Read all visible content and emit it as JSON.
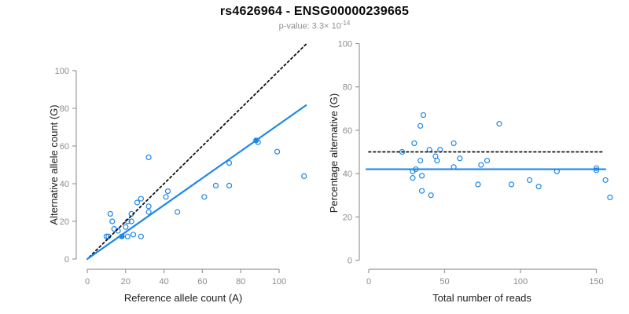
{
  "header": {
    "title": "rs4626964 - ENSG00000239665",
    "subtitle_text": "p-value: 3.3× 10",
    "subtitle_sup": "-14"
  },
  "colors": {
    "accent_blue": "#1E87E8",
    "axis_gray": "#999999",
    "tick_gray": "#8c8c8c",
    "label_black": "#1c1c1c",
    "dotted_black": "#111111",
    "subtitle_gray": "#8f8f8f"
  },
  "chart_data": [
    {
      "type": "scatter",
      "panel": "left",
      "xlabel": "Reference allele count (A)",
      "ylabel": "Alternative allele count (G)",
      "xticks": [
        0,
        20,
        40,
        60,
        80,
        100
      ],
      "yticks": [
        0,
        20,
        40,
        60,
        80,
        100
      ],
      "xlim": [
        0,
        114
      ],
      "ylim": [
        0,
        114
      ],
      "grid": false,
      "legend": "none",
      "points": [
        [
          10,
          12
        ],
        [
          11,
          12
        ],
        [
          12,
          24
        ],
        [
          13,
          20
        ],
        [
          14,
          16
        ],
        [
          16,
          15
        ],
        [
          20,
          17
        ],
        [
          21,
          12
        ],
        [
          21,
          20
        ],
        [
          23,
          20
        ],
        [
          23,
          24
        ],
        [
          24,
          13
        ],
        [
          26,
          30
        ],
        [
          28,
          12
        ],
        [
          28,
          32
        ],
        [
          32,
          25
        ],
        [
          32,
          28
        ],
        [
          32,
          54
        ],
        [
          41,
          33
        ],
        [
          42,
          36
        ],
        [
          47,
          25
        ],
        [
          61,
          33
        ],
        [
          67,
          39
        ],
        [
          74,
          39
        ],
        [
          74,
          51
        ],
        [
          89,
          62
        ],
        [
          99,
          57
        ],
        [
          113,
          44
        ]
      ],
      "filled_points": [
        [
          18,
          12
        ],
        [
          88,
          63
        ]
      ],
      "lines": [
        {
          "name": "identity-line",
          "style": "dotted",
          "color": "black",
          "from": [
            1,
            1
          ],
          "to": [
            114,
            114
          ]
        },
        {
          "name": "regression-line",
          "style": "solid",
          "color": "accent",
          "from": [
            0,
            0
          ],
          "to": [
            114,
            81.6
          ]
        }
      ]
    },
    {
      "type": "scatter",
      "panel": "right",
      "xlabel": "Total number of reads",
      "ylabel": "Percentage alternative (G)",
      "xticks": [
        0,
        50,
        100,
        150
      ],
      "yticks": [
        0,
        20,
        40,
        60,
        80,
        100
      ],
      "xlim": [
        0,
        159
      ],
      "ylim": [
        0,
        100
      ],
      "grid": false,
      "legend": "none",
      "points": [
        [
          22,
          50
        ],
        [
          29,
          38
        ],
        [
          29,
          41
        ],
        [
          30,
          54
        ],
        [
          31,
          42
        ],
        [
          34,
          46
        ],
        [
          34,
          62
        ],
        [
          35,
          32
        ],
        [
          35,
          39
        ],
        [
          36,
          67
        ],
        [
          40,
          51
        ],
        [
          41,
          30
        ],
        [
          44,
          48
        ],
        [
          45,
          46
        ],
        [
          47,
          51
        ],
        [
          56,
          43
        ],
        [
          56,
          54
        ],
        [
          60,
          47
        ],
        [
          72,
          35
        ],
        [
          74,
          44
        ],
        [
          78,
          46
        ],
        [
          86,
          63
        ],
        [
          94,
          35
        ],
        [
          106,
          37
        ],
        [
          112,
          34
        ],
        [
          124,
          41
        ],
        [
          150,
          42.5
        ],
        [
          150,
          41.5
        ],
        [
          156,
          37
        ],
        [
          159,
          29
        ]
      ],
      "filled_points": [],
      "lines": [
        {
          "name": "expected-50pct-line",
          "style": "dotted",
          "color": "black",
          "from": [
            0,
            50
          ],
          "to": [
            155,
            50
          ]
        },
        {
          "name": "mean-percentage-line",
          "style": "solid",
          "color": "accent",
          "from": [
            -1.5,
            42
          ],
          "to": [
            156,
            42
          ]
        }
      ]
    }
  ]
}
